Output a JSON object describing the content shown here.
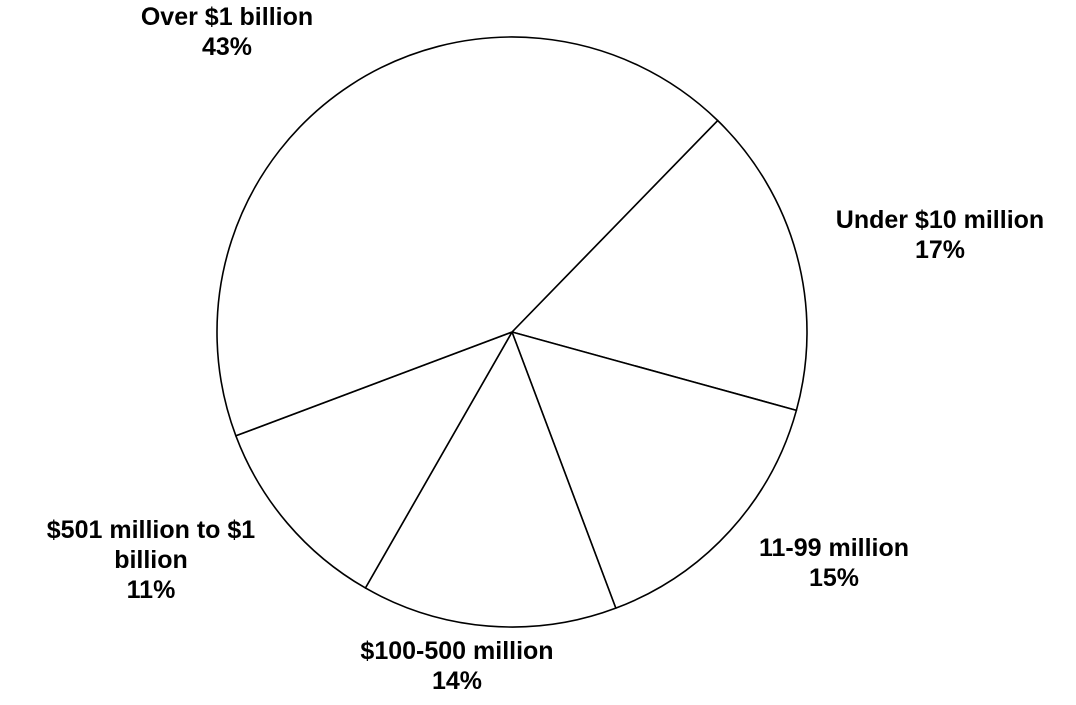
{
  "chart_data": {
    "type": "pie",
    "title": "",
    "legend": "none",
    "slices": [
      {
        "label_lines": [
          "Under $10 million"
        ],
        "label": "Under $10 million",
        "pct_text": "17%",
        "value": 17
      },
      {
        "label_lines": [
          "11-99 million"
        ],
        "label": "11-99 million",
        "pct_text": "15%",
        "value": 15
      },
      {
        "label_lines": [
          "$100-500 million"
        ],
        "label": "$100-500 million",
        "pct_text": "14%",
        "value": 14
      },
      {
        "label_lines": [
          "$501 million to $1",
          "billion"
        ],
        "label": "$501 million to $1 billion",
        "pct_text": "11%",
        "value": 11
      },
      {
        "label_lines": [
          "Over $1 billion"
        ],
        "label": "Over $1 billion",
        "pct_text": "43%",
        "value": 43
      }
    ],
    "colors": {
      "fill": "#ffffff",
      "stroke": "#000000"
    }
  }
}
